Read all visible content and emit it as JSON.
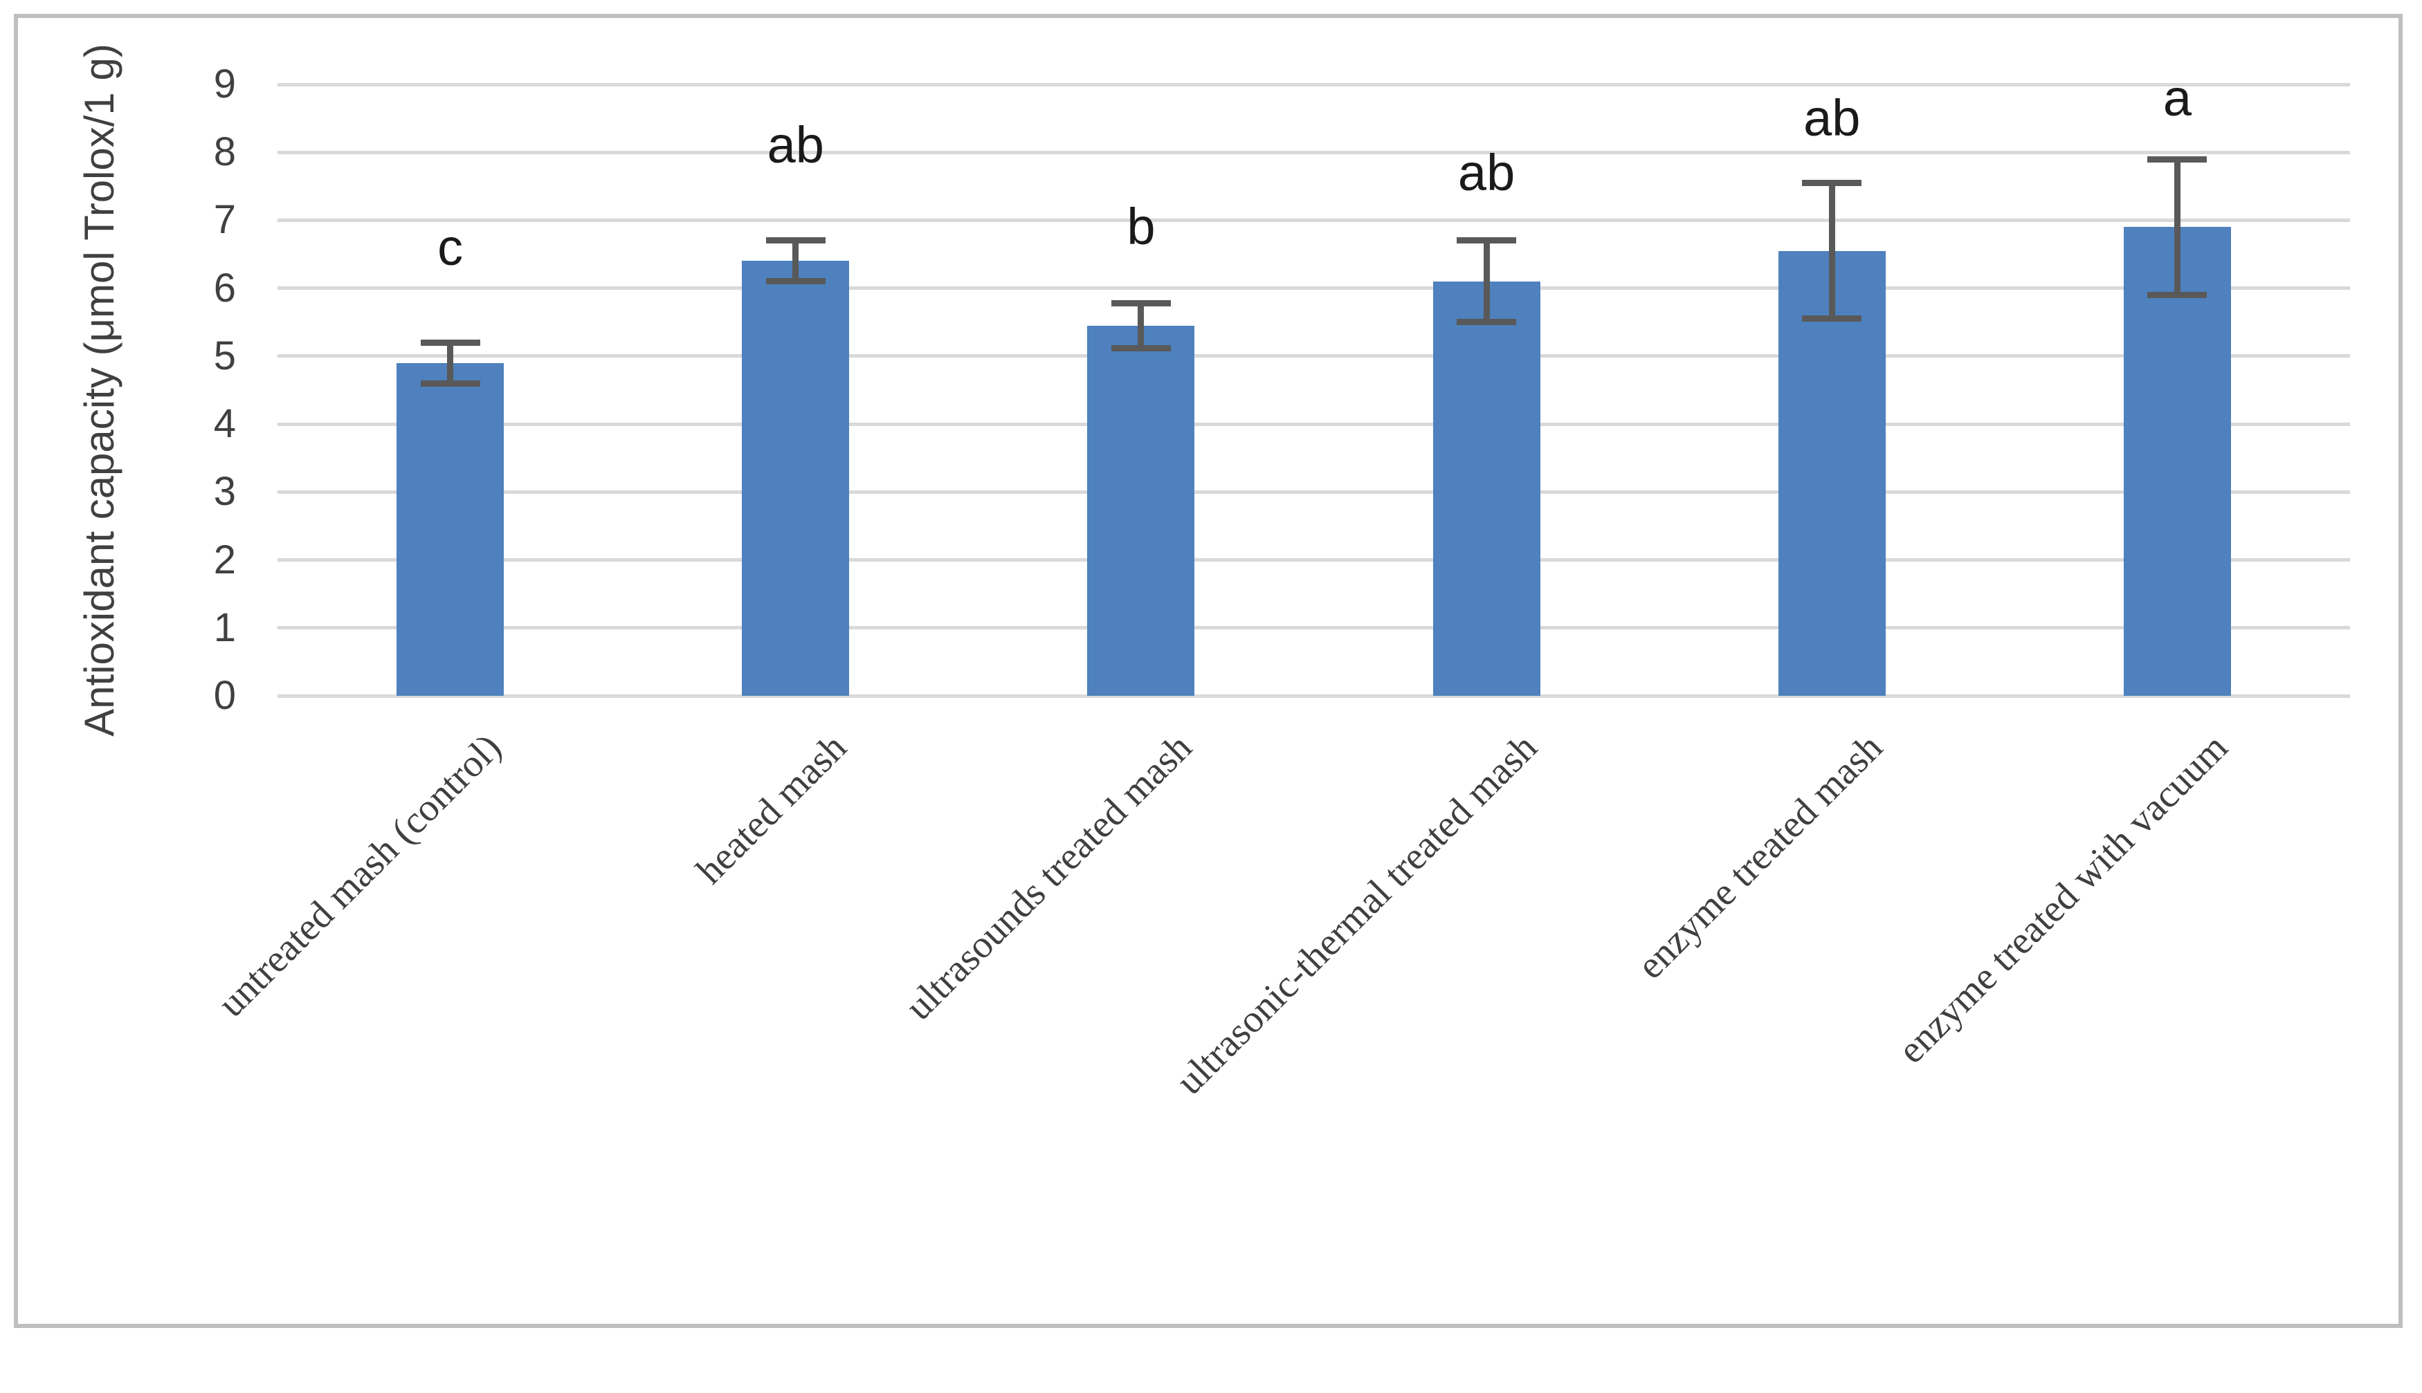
{
  "figure": {
    "background": "#FFFFFF",
    "border_color": "#BFBFBF"
  },
  "chart_data": {
    "type": "bar",
    "title": "",
    "xlabel": "",
    "ylabel": "Antioxidant capacity (μmol Trolox/1 g)",
    "categories": [
      "untreated mash (control)",
      "heated mash",
      "ultrasounds treated mash",
      "ultrasonic-thermal treated mash",
      "enzyme treated mash",
      "enzyme treated with vacuum"
    ],
    "values": [
      4.9,
      6.4,
      5.45,
      6.1,
      6.55,
      6.9
    ],
    "errors": [
      0.3,
      0.3,
      0.33,
      0.6,
      1.0,
      1.0
    ],
    "significance_letters": [
      "c",
      "ab",
      "b",
      "ab",
      "ab",
      "a"
    ],
    "letter_y_positions": [
      6.6,
      8.1,
      6.9,
      7.7,
      8.5,
      8.8
    ],
    "ylim": [
      0,
      9
    ],
    "ytick_step": 1,
    "yticks": [
      "0",
      "1",
      "2",
      "3",
      "4",
      "5",
      "6",
      "7",
      "8",
      "9"
    ],
    "grid": true,
    "legend": "none",
    "bar_color": "#4E81BD",
    "error_bar_color": "#595959",
    "gridline_color": "#D9D9D9",
    "tick_label_color": "#404040",
    "axis_label_color": "#404040",
    "letter_color": "#1A1A1A"
  }
}
